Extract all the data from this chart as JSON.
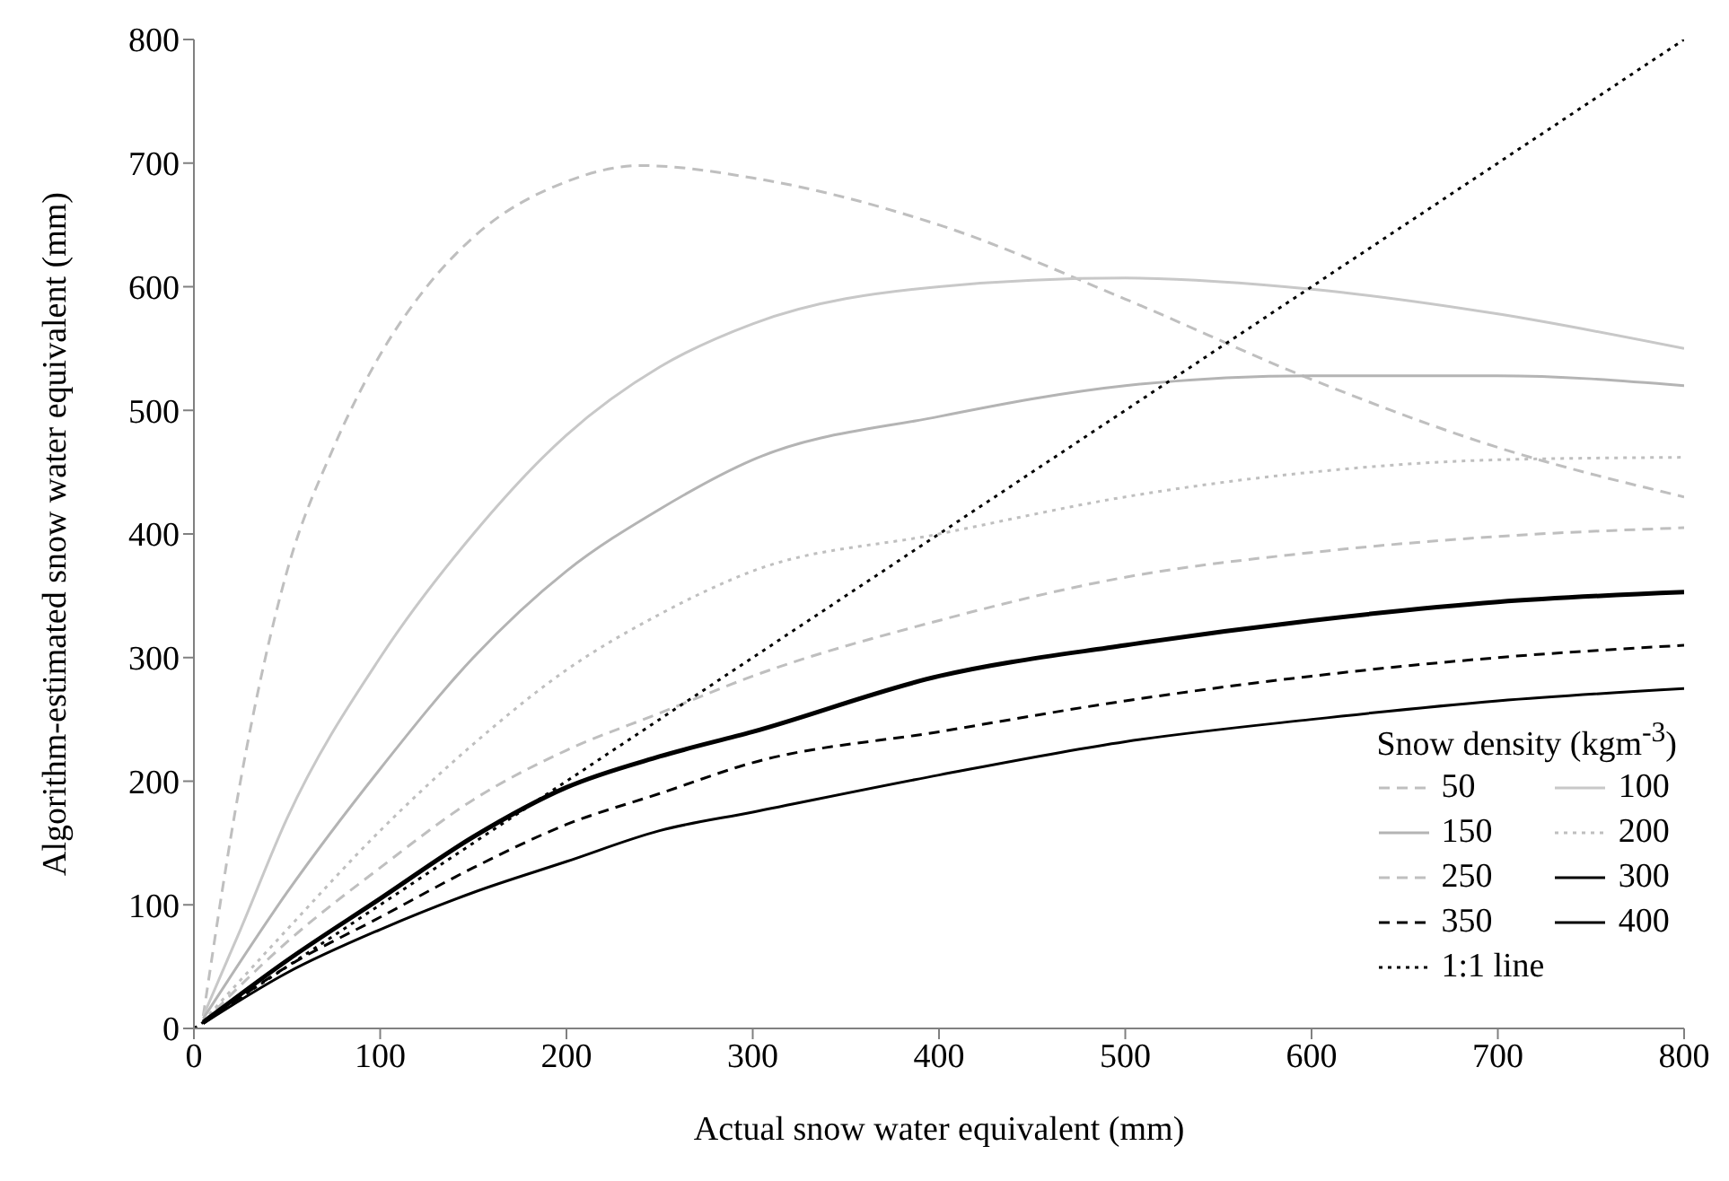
{
  "chart_data": {
    "type": "line",
    "xlabel": "Actual snow water equivalent (mm)",
    "ylabel": "Algorithm-estimated snow water equivalent (mm)",
    "legend_title": "Snow density (kgm$^{-3}$)",
    "xlim": [
      0,
      800
    ],
    "ylim": [
      0,
      800
    ],
    "xticks": [
      0,
      100,
      200,
      300,
      400,
      500,
      600,
      700,
      800
    ],
    "yticks": [
      0,
      100,
      200,
      300,
      400,
      500,
      600,
      700,
      800
    ],
    "grid": false,
    "legend": "bottom right",
    "marker": "none",
    "series": [
      {
        "name": "50",
        "color": "#bfbfbf",
        "line_style": "dashed",
        "x": [
          5,
          25,
          50,
          75,
          100,
          125,
          150,
          200,
          240,
          300,
          400,
          500,
          600,
          700,
          800
        ],
        "values": [
          10,
          200,
          370,
          470,
          545,
          600,
          640,
          685,
          698,
          688,
          650,
          590,
          525,
          470,
          430
        ]
      },
      {
        "name": "100",
        "color": "#c8c8c8",
        "line_style": "solid",
        "x": [
          5,
          25,
          50,
          100,
          150,
          200,
          250,
          300,
          400,
          500,
          600,
          700,
          800
        ],
        "values": [
          10,
          80,
          170,
          300,
          400,
          480,
          535,
          570,
          600,
          607,
          598,
          578,
          550
        ]
      },
      {
        "name": "150",
        "color": "#b4b4b4",
        "line_style": "solid",
        "x": [
          5,
          50,
          100,
          150,
          200,
          250,
          300,
          400,
          500,
          600,
          700,
          800
        ],
        "values": [
          8,
          110,
          210,
          300,
          370,
          420,
          460,
          495,
          520,
          528,
          528,
          520
        ]
      },
      {
        "name": "200",
        "color": "#bfbfbf",
        "line_style": "dotted",
        "x": [
          5,
          50,
          100,
          150,
          200,
          250,
          300,
          400,
          500,
          600,
          700,
          800
        ],
        "values": [
          6,
          80,
          160,
          230,
          290,
          335,
          370,
          400,
          430,
          450,
          460,
          462
        ]
      },
      {
        "name": "250",
        "color": "#bfbfbf",
        "line_style": "dashed",
        "x": [
          5,
          50,
          100,
          150,
          200,
          250,
          300,
          400,
          500,
          600,
          700,
          800
        ],
        "values": [
          5,
          70,
          130,
          185,
          225,
          255,
          285,
          330,
          365,
          385,
          398,
          405
        ]
      },
      {
        "name": "300",
        "color": "#000000",
        "line_style": "solid",
        "x": [
          5,
          50,
          100,
          150,
          200,
          250,
          300,
          400,
          500,
          600,
          700,
          800
        ],
        "values": [
          5,
          55,
          105,
          155,
          195,
          220,
          240,
          285,
          310,
          330,
          345,
          353
        ]
      },
      {
        "name": "350",
        "color": "#000000",
        "line_style": "dashed",
        "x": [
          5,
          50,
          100,
          150,
          200,
          250,
          300,
          400,
          500,
          600,
          700,
          800
        ],
        "values": [
          4,
          50,
          90,
          130,
          165,
          190,
          215,
          240,
          265,
          285,
          300,
          310
        ]
      },
      {
        "name": "400",
        "color": "#000000",
        "line_style": "solid",
        "x": [
          5,
          50,
          100,
          150,
          200,
          250,
          300,
          400,
          500,
          600,
          700,
          800
        ],
        "values": [
          4,
          45,
          80,
          110,
          135,
          160,
          175,
          205,
          232,
          250,
          265,
          275
        ]
      },
      {
        "name": "1:1 line",
        "color": "#000000",
        "line_style": "dotted",
        "x": [
          0,
          800
        ],
        "values": [
          0,
          800
        ]
      }
    ]
  }
}
